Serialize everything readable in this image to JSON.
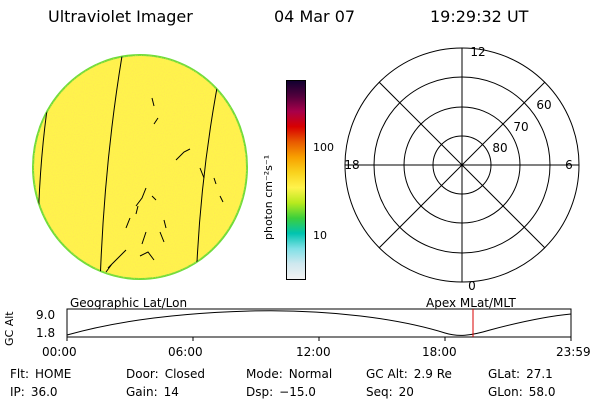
{
  "header": {
    "title": "Ultraviolet Imager",
    "date": "04 Mar 07",
    "time": "19:29:32 UT"
  },
  "colorbar": {
    "unit_label": "photon cm⁻²s⁻¹",
    "ticks": [
      "100",
      "10"
    ],
    "colors": [
      "#f2f2f2",
      "#cfe8ef",
      "#7fe0e6",
      "#00c4b0",
      "#3ccf3c",
      "#b8ea1e",
      "#fff34c",
      "#f9d21d",
      "#f8a000",
      "#e85a00",
      "#d80000",
      "#a8004a",
      "#52003c",
      "#120030"
    ]
  },
  "polar_plot": {
    "mlt_labels": [
      "12",
      "18",
      "6",
      "0"
    ],
    "lat_labels": [
      "60",
      "70",
      "80"
    ]
  },
  "altitude_plot": {
    "left_title": "Geographic Lat/Lon",
    "right_title": "Apex MLat/MLT",
    "y_axis_label": "GC Alt",
    "y_ticks": [
      "9.0",
      "1.8"
    ],
    "x_ticks": [
      "00:00",
      "06:00",
      "12:00",
      "18:00",
      "23:59"
    ]
  },
  "footer": [
    [
      {
        "label": "Flt:",
        "value": "HOME"
      },
      {
        "label": "Door:",
        "value": "Closed"
      },
      {
        "label": "Mode:",
        "value": "Normal"
      },
      {
        "label": "GC Alt:",
        "value": "2.9 Re"
      },
      {
        "label": "GLat:",
        "value": "27.1"
      }
    ],
    [
      {
        "label": "IP:",
        "value": "36.0"
      },
      {
        "label": "Gain:",
        "value": "14"
      },
      {
        "label": "Dsp:",
        "value": "−15.0"
      },
      {
        "label": "Seq:",
        "value": "20"
      },
      {
        "label": "GLon:",
        "value": "58.0"
      }
    ]
  ]
}
